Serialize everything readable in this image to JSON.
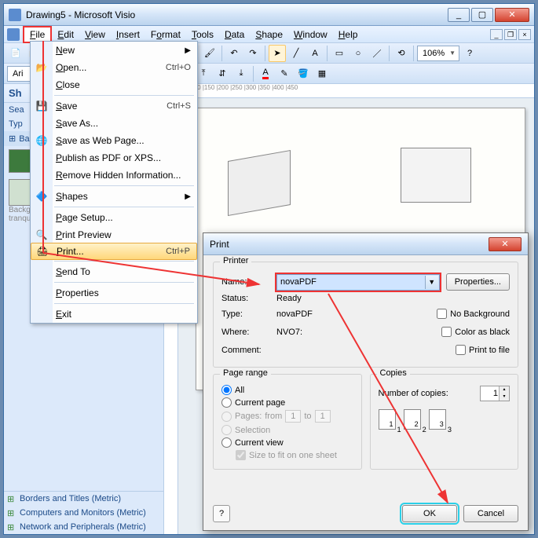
{
  "window": {
    "title": "Drawing5 - Microsoft Visio"
  },
  "menubar": {
    "items": [
      "File",
      "Edit",
      "View",
      "Insert",
      "Format",
      "Tools",
      "Data",
      "Shape",
      "Window",
      "Help"
    ]
  },
  "toolbar": {
    "zoom": "106%"
  },
  "format": {
    "font": "Ari"
  },
  "leftpane": {
    "header": "Sh",
    "search_label": "Sea",
    "type_label": "Typ",
    "back_label": "Ba",
    "bg_label": "Background",
    "bg_value": "tranquil",
    "stencils": [
      "Borders and Titles (Metric)",
      "Computers and Monitors (Metric)",
      "Network and Peripherals (Metric)"
    ]
  },
  "filemenu": {
    "items": [
      {
        "label": "New",
        "arrow": true
      },
      {
        "label": "Open...",
        "shortcut": "Ctrl+O",
        "icon": "📂"
      },
      {
        "label": "Close"
      },
      {
        "sep": true
      },
      {
        "label": "Save",
        "shortcut": "Ctrl+S",
        "icon": "💾"
      },
      {
        "label": "Save As..."
      },
      {
        "label": "Save as Web Page...",
        "icon": "🌐"
      },
      {
        "label": "Publish as PDF or XPS..."
      },
      {
        "label": "Remove Hidden Information..."
      },
      {
        "sep": true
      },
      {
        "label": "Shapes",
        "arrow": true,
        "icon": "🔷"
      },
      {
        "sep": true
      },
      {
        "label": "Page Setup..."
      },
      {
        "label": "Print Preview",
        "icon": "🔍"
      },
      {
        "label": "Print...",
        "shortcut": "Ctrl+P",
        "icon": "🖨",
        "highlight": true
      },
      {
        "sep": true
      },
      {
        "label": "Send To"
      },
      {
        "sep": true
      },
      {
        "label": "Properties"
      },
      {
        "sep": true
      },
      {
        "label": "Exit"
      }
    ]
  },
  "dialog": {
    "title": "Print",
    "printer_group": "Printer",
    "name_label": "Name:",
    "name_value": "novaPDF",
    "properties_btn": "Properties...",
    "status_label": "Status:",
    "status_value": "Ready",
    "type_label": "Type:",
    "type_value": "novaPDF",
    "where_label": "Where:",
    "where_value": "NVO7:",
    "comment_label": "Comment:",
    "nobg": "No Background",
    "colorblack": "Color as black",
    "printfile": "Print to file",
    "pagerange_group": "Page range",
    "all": "All",
    "currentpage": "Current page",
    "pages": "Pages:",
    "from": "from",
    "to": "to",
    "pg_from": "1",
    "pg_to": "1",
    "selection": "Selection",
    "currentview": "Current view",
    "sizetofit": "Size to fit on one sheet",
    "copies_group": "Copies",
    "numcopies": "Number of copies:",
    "copies_val": "1",
    "ok": "OK",
    "cancel": "Cancel"
  },
  "colors": {
    "highlight_red": "#e33333",
    "highlight_cyan": "#2bd0e8"
  }
}
